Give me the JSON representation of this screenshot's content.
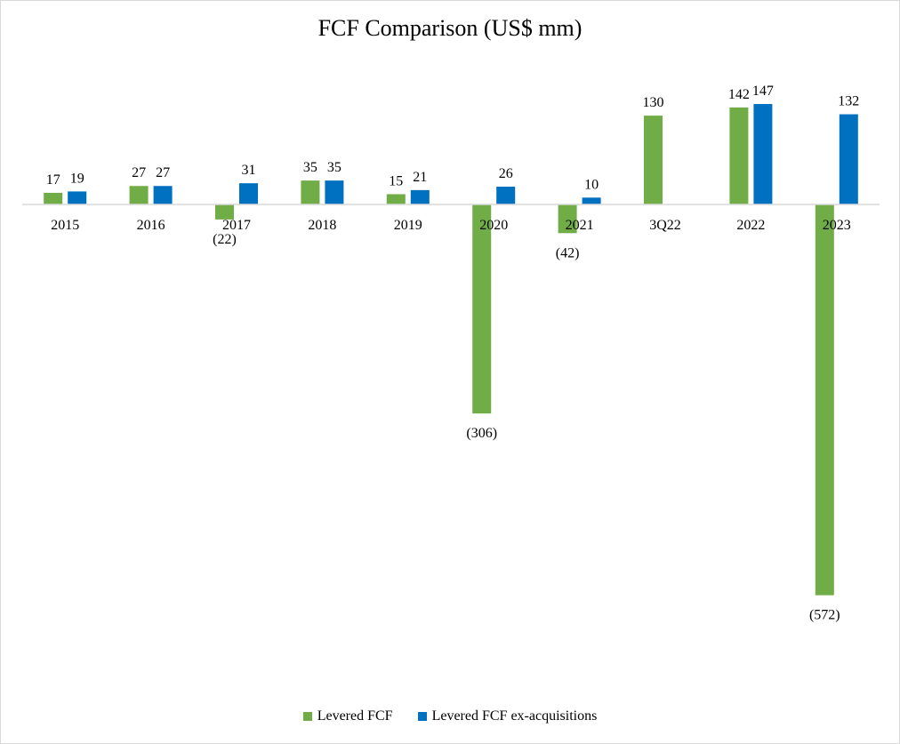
{
  "chart_data": {
    "type": "bar",
    "title": "FCF Comparison  (US$ mm)",
    "xlabel": "",
    "ylabel": "",
    "categories": [
      "2015",
      "2016",
      "2017",
      "2018",
      "2019",
      "2020",
      "2021",
      "3Q22",
      "2022",
      "2023"
    ],
    "series": [
      {
        "name": "Levered FCF",
        "color": "#70ad47",
        "values": [
          17,
          27,
          -22,
          35,
          15,
          -306,
          -42,
          130,
          142,
          -572
        ],
        "labels": [
          "17",
          "27",
          "(22)",
          "35",
          "15",
          "(306)",
          "(42)",
          "130",
          "142",
          "(572)"
        ]
      },
      {
        "name": "Levered FCF ex-acquisitions",
        "color": "#0070c0",
        "values": [
          19,
          27,
          31,
          35,
          21,
          26,
          10,
          null,
          147,
          132
        ],
        "labels": [
          "19",
          "27",
          "31",
          "35",
          "21",
          "26",
          "10",
          "",
          "147",
          "132"
        ]
      }
    ],
    "ylim": [
      -600,
      160
    ],
    "grid": false,
    "legend_position": "bottom"
  }
}
